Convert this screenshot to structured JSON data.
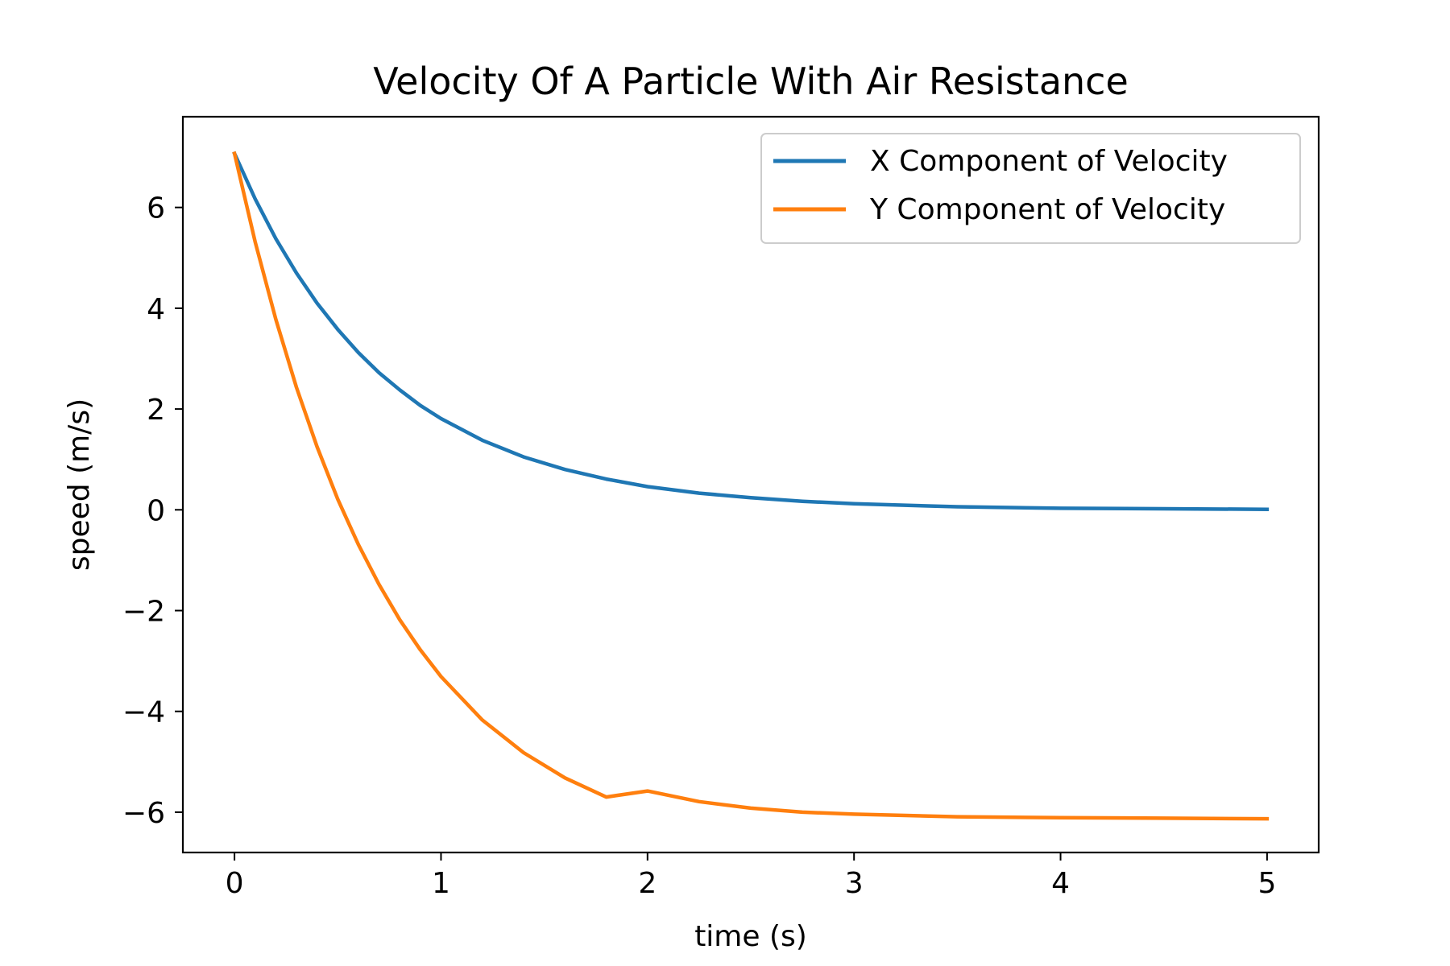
{
  "chart_data": {
    "type": "line",
    "title": "Velocity Of A Particle With Air Resistance",
    "xlabel": "time (s)",
    "ylabel": "speed (m/s)",
    "xlim": [
      -0.25,
      5.25
    ],
    "ylim": [
      -6.8,
      7.8
    ],
    "xticks": [
      0,
      1,
      2,
      3,
      4,
      5
    ],
    "yticks": [
      -6,
      -4,
      -2,
      0,
      2,
      4,
      6
    ],
    "xtick_labels": [
      "0",
      "1",
      "2",
      "3",
      "4",
      "5"
    ],
    "ytick_labels": [
      "−6",
      "−4",
      "−2",
      "0",
      "2",
      "4",
      "6"
    ],
    "grid": false,
    "legend_position": "top-right",
    "series": [
      {
        "name": "X Component of Velocity",
        "color": "#1f77b4",
        "x": [
          0,
          0.1,
          0.2,
          0.3,
          0.4,
          0.5,
          0.6,
          0.7,
          0.8,
          0.9,
          1.0,
          1.2,
          1.4,
          1.6,
          1.8,
          2.0,
          2.25,
          2.5,
          2.75,
          3.0,
          3.5,
          4.0,
          4.5,
          5.0
        ],
        "y": [
          7.07,
          6.17,
          5.38,
          4.7,
          4.1,
          3.58,
          3.12,
          2.72,
          2.38,
          2.07,
          1.81,
          1.38,
          1.05,
          0.8,
          0.61,
          0.46,
          0.33,
          0.24,
          0.17,
          0.12,
          0.06,
          0.03,
          0.02,
          0.01
        ]
      },
      {
        "name": "Y Component of Velocity",
        "color": "#ff7f0e",
        "x": [
          0,
          0.1,
          0.2,
          0.3,
          0.4,
          0.5,
          0.6,
          0.7,
          0.8,
          0.9,
          1.0,
          1.2,
          1.4,
          1.6,
          1.8,
          2.0,
          2.25,
          2.5,
          2.75,
          3.0,
          3.5,
          4.0,
          4.5,
          5.0
        ],
        "y": [
          7.07,
          5.32,
          3.78,
          2.43,
          1.25,
          0.21,
          -0.69,
          -1.48,
          -2.18,
          -2.78,
          -3.31,
          -4.17,
          -4.82,
          -5.32,
          -5.7,
          -5.58,
          -5.79,
          -5.92,
          -6.0,
          -6.04,
          -6.09,
          -6.11,
          -6.12,
          -6.13
        ]
      }
    ]
  }
}
